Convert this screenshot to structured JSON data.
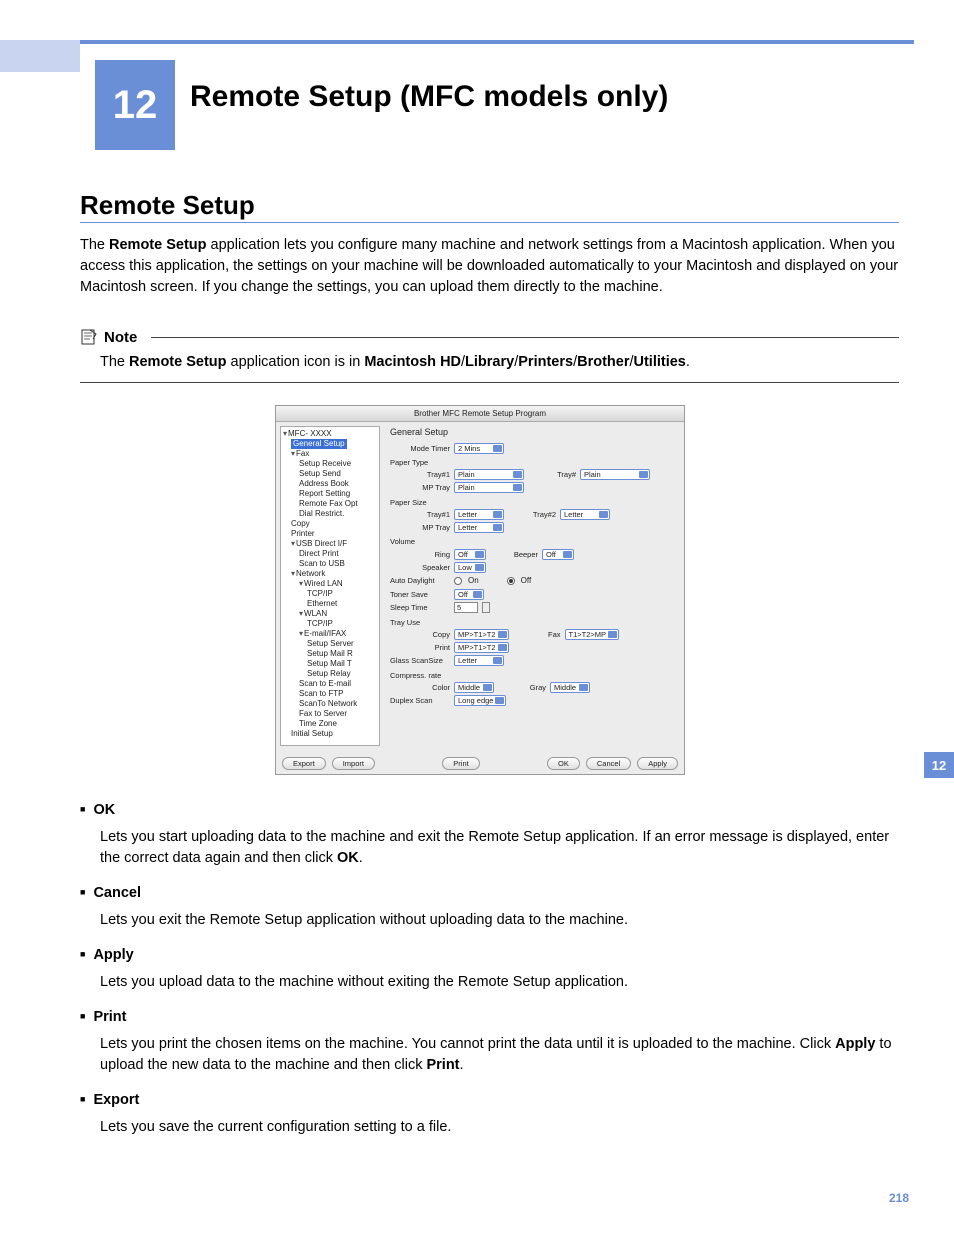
{
  "chapter": {
    "number": "12",
    "title": "Remote Setup (MFC models only)"
  },
  "section_title": "Remote Setup",
  "intro": {
    "prefix": "The ",
    "bold1": "Remote Setup",
    "rest": " application lets you configure many machine and network settings from a Macintosh application. When you access this application, the settings on your machine will be downloaded automatically to your Macintosh and displayed on your Macintosh screen. If you change the settings, you can upload them directly to the machine."
  },
  "note": {
    "label": "Note",
    "prefix": "The ",
    "bold1": "Remote Setup",
    "mid": " application icon is in ",
    "bold2": "Macintosh HD",
    "sep": "/",
    "bold3": "Library",
    "bold4": "Printers",
    "bold5": "Brother",
    "bold6": "Utilities",
    "end": "."
  },
  "app": {
    "title": "Brother MFC Remote Setup Program",
    "tree": [
      {
        "lvl": 0,
        "tri": true,
        "label": "MFC- XXXX"
      },
      {
        "lvl": 1,
        "sel": true,
        "label": "General Setup"
      },
      {
        "lvl": 1,
        "tri": true,
        "label": "Fax"
      },
      {
        "lvl": 2,
        "label": "Setup Receive"
      },
      {
        "lvl": 2,
        "label": "Setup Send"
      },
      {
        "lvl": 2,
        "label": "Address Book"
      },
      {
        "lvl": 2,
        "label": "Report Setting"
      },
      {
        "lvl": 2,
        "label": "Remote Fax Opt"
      },
      {
        "lvl": 2,
        "label": "Dial Restrict."
      },
      {
        "lvl": 1,
        "label": "Copy"
      },
      {
        "lvl": 1,
        "label": "Printer"
      },
      {
        "lvl": 1,
        "tri": true,
        "label": "USB Direct I/F"
      },
      {
        "lvl": 2,
        "label": "Direct Print"
      },
      {
        "lvl": 2,
        "label": "Scan to USB"
      },
      {
        "lvl": 1,
        "tri": true,
        "label": "Network"
      },
      {
        "lvl": 2,
        "tri": true,
        "label": "Wired LAN"
      },
      {
        "lvl": 3,
        "label": "TCP/IP"
      },
      {
        "lvl": 3,
        "label": "Ethernet"
      },
      {
        "lvl": 2,
        "tri": true,
        "label": "WLAN"
      },
      {
        "lvl": 3,
        "label": "TCP/IP"
      },
      {
        "lvl": 2,
        "tri": true,
        "label": "E-mail/IFAX"
      },
      {
        "lvl": 3,
        "label": "Setup Server"
      },
      {
        "lvl": 3,
        "label": "Setup Mail R"
      },
      {
        "lvl": 3,
        "label": "Setup Mail T"
      },
      {
        "lvl": 3,
        "label": "Setup Relay"
      },
      {
        "lvl": 2,
        "label": "Scan to E-mail"
      },
      {
        "lvl": 2,
        "label": "Scan to FTP"
      },
      {
        "lvl": 2,
        "label": "ScanTo Network"
      },
      {
        "lvl": 2,
        "label": "Fax to Server"
      },
      {
        "lvl": 2,
        "label": "Time Zone"
      },
      {
        "lvl": 1,
        "label": "Initial Setup"
      }
    ],
    "form": {
      "title": "General Setup",
      "mode_timer": {
        "label": "Mode Timer",
        "value": "2 Mins"
      },
      "paper_type": {
        "label": "Paper Type",
        "tray1_label": "Tray#1",
        "tray1": "Plain",
        "trayn_label": "Tray#",
        "trayn": "Plain",
        "mp_label": "MP Tray",
        "mp": "Plain"
      },
      "paper_size": {
        "label": "Paper Size",
        "tray1_label": "Tray#1",
        "tray1": "Letter",
        "tray2_label": "Tray#2",
        "tray2": "Letter",
        "mp_label": "MP Tray",
        "mp": "Letter"
      },
      "volume": {
        "label": "Volume",
        "ring_label": "Ring",
        "ring": "Off",
        "beeper_label": "Beeper",
        "beeper": "Off",
        "speaker_label": "Speaker",
        "speaker": "Low"
      },
      "auto_daylight": {
        "label": "Auto Daylight",
        "on": "On",
        "off": "Off"
      },
      "toner_save": {
        "label": "Toner Save",
        "value": "Off"
      },
      "sleep_time": {
        "label": "Sleep Time",
        "value": "5"
      },
      "tray_use": {
        "label": "Tray Use",
        "copy_label": "Copy",
        "copy": "MP>T1>T2",
        "fax_label": "Fax",
        "fax": "T1>T2>MP",
        "print_label": "Print",
        "print": "MP>T1>T2"
      },
      "glass": {
        "label": "Glass ScanSize",
        "value": "Letter"
      },
      "compress": {
        "label": "Compress. rate",
        "color_label": "Color",
        "color": "Middle",
        "gray_label": "Gray",
        "gray": "Middle"
      },
      "duplex": {
        "label": "Duplex Scan",
        "value": "Long edge"
      }
    },
    "buttons": {
      "export": "Export",
      "import": "Import",
      "print": "Print",
      "ok": "OK",
      "cancel": "Cancel",
      "apply": "Apply"
    }
  },
  "descriptions": [
    {
      "title": "OK",
      "text_pre": "Lets you start uploading data to the machine and exit the Remote Setup application. If an error message is displayed, enter the correct data again and then click ",
      "bold": "OK",
      "text_post": "."
    },
    {
      "title": "Cancel",
      "text_pre": "Lets you exit the Remote Setup application without uploading data to the machine.",
      "bold": "",
      "text_post": ""
    },
    {
      "title": "Apply",
      "text_pre": "Lets you upload data to the machine without exiting the Remote Setup application.",
      "bold": "",
      "text_post": ""
    },
    {
      "title": "Print",
      "text_pre": "Lets you print the chosen items on the machine. You cannot print the data until it is uploaded to the machine. Click ",
      "bold": "Apply",
      "text_post": " to upload the new data to the machine and then click ",
      "bold2": "Print",
      "text_post2": "."
    },
    {
      "title": "Export",
      "text_pre": "Lets you save the current configuration setting to a file.",
      "bold": "",
      "text_post": ""
    }
  ],
  "side_tab": "12",
  "page_number": "218"
}
